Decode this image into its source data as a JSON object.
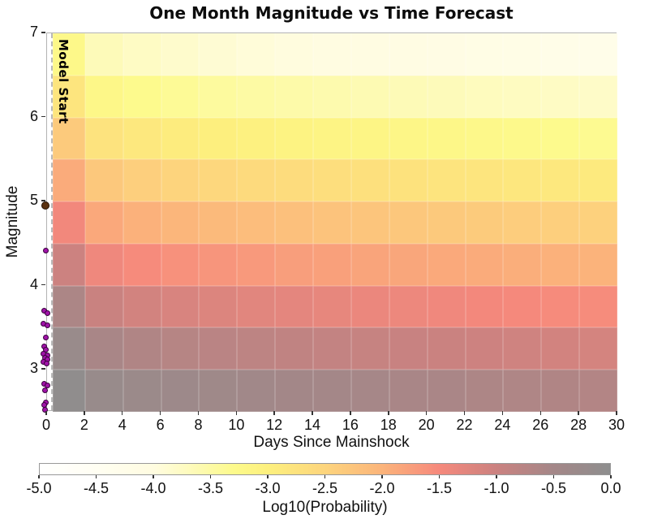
{
  "title": "One Month Magnitude vs Time Forecast",
  "x_axis": {
    "label": "Days Since Mainshock",
    "ticks": [
      0,
      2,
      4,
      6,
      8,
      10,
      12,
      14,
      16,
      18,
      20,
      22,
      24,
      26,
      28,
      30
    ]
  },
  "y_axis": {
    "label": "Magnitude",
    "ticks": [
      3,
      4,
      5,
      6,
      7
    ]
  },
  "model_start": {
    "label": "Model Start",
    "day": 0.2
  },
  "colorbar": {
    "label": "Log10(Probability)",
    "tick_labels": [
      "-5.0",
      "-4.5",
      "-4.0",
      "-3.5",
      "-3.0",
      "-2.5",
      "-2.0",
      "-1.5",
      "-1.0",
      "-0.5",
      "0.0"
    ],
    "min": -5.0,
    "max": 0.0,
    "stops": [
      [
        -5.0,
        "#ffffff"
      ],
      [
        -4.5,
        "#fffef2"
      ],
      [
        -4.0,
        "#fffce0"
      ],
      [
        -3.6,
        "#fdfab2"
      ],
      [
        -3.3,
        "#fdfa8c"
      ],
      [
        -3.0,
        "#fdf07e"
      ],
      [
        -2.5,
        "#fdd57d"
      ],
      [
        -2.0,
        "#fbb47b"
      ],
      [
        -1.5,
        "#f6897c"
      ],
      [
        -1.0,
        "#cb8280"
      ],
      [
        -0.5,
        "#a48788"
      ],
      [
        0.0,
        "#8e8e8e"
      ]
    ]
  },
  "chart_data": {
    "type": "heatmap",
    "title": "One Month Magnitude vs Time Forecast",
    "xlabel": "Days Since Mainshock",
    "ylabel": "Magnitude",
    "value_label": "Log10(Probability)",
    "xlim": [
      0,
      30
    ],
    "ylim": [
      2.5,
      7.0
    ],
    "vlim": [
      -5.0,
      0.0
    ],
    "day_edges": [
      0.3,
      2,
      4,
      6,
      8,
      10,
      12,
      14,
      16,
      18,
      20,
      22,
      24,
      26,
      28,
      30
    ],
    "mag_edges": [
      2.5,
      3.0,
      3.5,
      4.0,
      4.5,
      5.0,
      5.5,
      6.0,
      6.5,
      7.0
    ],
    "rows_top_to_bottom": [
      "6.5-7.0",
      "6.0-6.5",
      "5.5-6.0",
      "5.0-5.5",
      "4.5-5.0",
      "4.0-4.5",
      "3.5-4.0",
      "3.0-3.5",
      "2.5-3.0"
    ],
    "log10_prob": [
      [
        -3.24,
        -3.66,
        -3.76,
        -3.83,
        -3.89,
        -3.94,
        -3.98,
        -4.02,
        -4.06,
        -4.09,
        -4.12,
        -4.15,
        -4.18,
        -4.21,
        -4.24
      ],
      [
        -2.79,
        -3.21,
        -3.31,
        -3.38,
        -3.44,
        -3.49,
        -3.53,
        -3.57,
        -3.61,
        -3.64,
        -3.67,
        -3.7,
        -3.73,
        -3.76,
        -3.79
      ],
      [
        -2.34,
        -2.76,
        -2.86,
        -2.93,
        -2.99,
        -3.04,
        -3.08,
        -3.12,
        -3.16,
        -3.19,
        -3.22,
        -3.25,
        -3.28,
        -3.31,
        -3.34
      ],
      [
        -1.89,
        -2.31,
        -2.41,
        -2.48,
        -2.54,
        -2.59,
        -2.63,
        -2.67,
        -2.71,
        -2.74,
        -2.77,
        -2.8,
        -2.83,
        -2.86,
        -2.89
      ],
      [
        -1.45,
        -1.86,
        -1.96,
        -2.03,
        -2.09,
        -2.14,
        -2.18,
        -2.22,
        -2.26,
        -2.29,
        -2.32,
        -2.35,
        -2.38,
        -2.41,
        -2.44
      ],
      [
        -1.01,
        -1.42,
        -1.52,
        -1.59,
        -1.64,
        -1.69,
        -1.74,
        -1.77,
        -1.81,
        -1.84,
        -1.87,
        -1.9,
        -1.93,
        -1.96,
        -1.99
      ],
      [
        -0.6,
        -0.98,
        -1.08,
        -1.15,
        -1.2,
        -1.25,
        -1.29,
        -1.33,
        -1.37,
        -1.4,
        -1.43,
        -1.46,
        -1.49,
        -1.52,
        -1.54
      ],
      [
        -0.25,
        -0.57,
        -0.66,
        -0.73,
        -0.78,
        -0.82,
        -0.86,
        -0.9,
        -0.93,
        -0.96,
        -0.99,
        -1.02,
        -1.05,
        -1.08,
        -1.11
      ],
      [
        -0.05,
        -0.23,
        -0.3,
        -0.35,
        -0.39,
        -0.43,
        -0.47,
        -0.5,
        -0.53,
        -0.56,
        -0.58,
        -0.61,
        -0.64,
        -0.66,
        -0.69
      ]
    ],
    "events": {
      "mainshock": {
        "day": -0.1,
        "magnitude": 4.95,
        "fill": "#5a3110",
        "edge": "#241102",
        "radius": 5
      },
      "aftershock_style": {
        "fill": "#a013a8",
        "edge": "#38023c",
        "radius": 3.5
      },
      "aftershocks": [
        [
          -0.05,
          4.42
        ],
        [
          -0.15,
          3.7
        ],
        [
          0.0,
          3.67
        ],
        [
          -0.18,
          3.55
        ],
        [
          0.02,
          3.53
        ],
        [
          -0.05,
          3.38
        ],
        [
          -0.15,
          3.28
        ],
        [
          -0.08,
          3.24
        ],
        [
          -0.18,
          3.19
        ],
        [
          0.0,
          3.17
        ],
        [
          -0.12,
          3.14
        ],
        [
          0.04,
          3.12
        ],
        [
          -0.18,
          3.09
        ],
        [
          -0.02,
          3.07
        ],
        [
          -0.14,
          2.83
        ],
        [
          0.0,
          2.81
        ],
        [
          -0.1,
          2.76
        ],
        [
          -0.08,
          2.61
        ],
        [
          -0.16,
          2.58
        ],
        [
          -0.1,
          2.52
        ]
      ]
    }
  }
}
